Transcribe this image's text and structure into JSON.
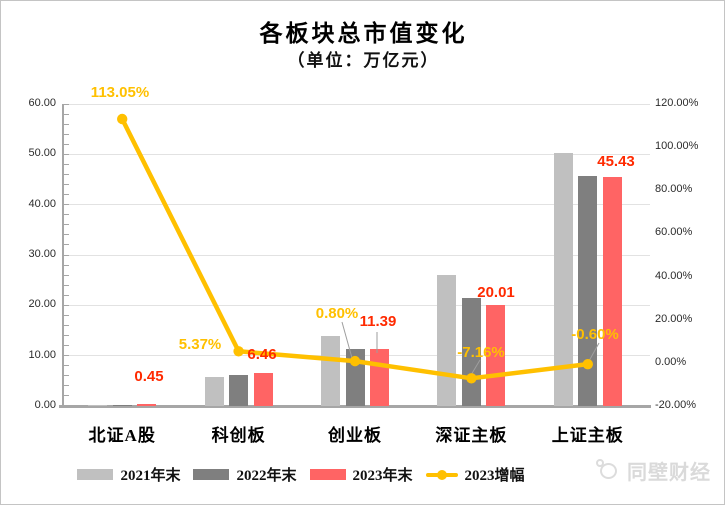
{
  "title": "各板块总市值变化",
  "subtitle": "（单位：万亿元）",
  "watermark": {
    "brand": "同壁财经",
    "icon": "panda-face-logo"
  },
  "legend": {
    "items": [
      {
        "label": "2021年末",
        "swatch": "bar",
        "color": "#c0c0c0"
      },
      {
        "label": "2022年末",
        "swatch": "bar",
        "color": "#7f7f7f"
      },
      {
        "label": "2023年末",
        "swatch": "bar",
        "color": "#ff6464"
      },
      {
        "label": "2023增幅",
        "swatch": "line-dot",
        "color": "#ffc000"
      }
    ]
  },
  "colors": {
    "bar_2021": "#c0c0c0",
    "bar_2022": "#7f7f7f",
    "bar_2023": "#ff6464",
    "growth_line": "#ffc000",
    "value_label": "#ff2a00",
    "growth_label": "#ffc000",
    "axis": "#a6a6a6",
    "gridline": "#e2e2e2",
    "leader_line": "#9e9e9e"
  },
  "chart_data": {
    "type": "bar",
    "combo": "clustered bars on left axis + line with markers on right percentage axis",
    "title": "各板块总市值变化",
    "subtitle": "（单位：万亿元）",
    "categories": [
      "北证A股",
      "科创板",
      "创业板",
      "深证主板",
      "上证主板"
    ],
    "series": [
      {
        "name": "2021年末",
        "type": "bar",
        "axis": "left",
        "values": [
          0.27,
          5.8,
          14.0,
          26.0,
          50.3
        ]
      },
      {
        "name": "2022年末",
        "type": "bar",
        "axis": "left",
        "values": [
          0.21,
          6.13,
          11.3,
          21.55,
          45.7
        ]
      },
      {
        "name": "2023年末",
        "type": "bar",
        "axis": "left",
        "values": [
          0.45,
          6.46,
          11.39,
          20.01,
          45.43
        ]
      },
      {
        "name": "2023增幅",
        "type": "line",
        "axis": "right",
        "values": [
          113.05,
          5.37,
          0.8,
          -7.16,
          -0.6
        ]
      }
    ],
    "data_labels": {
      "values_2023": [
        "0.45",
        "6.46",
        "11.39",
        "20.01",
        "45.43"
      ],
      "growth_2023": [
        "113.05%",
        "5.37%",
        "0.80%",
        "-7.16%",
        "-0.60%"
      ]
    },
    "left_axis": {
      "min": 0,
      "max": 60,
      "step": 10,
      "tick_labels": [
        "0.00",
        "10.00",
        "20.00",
        "30.00",
        "40.00",
        "50.00",
        "60.00"
      ]
    },
    "right_axis": {
      "min": -20,
      "max": 120,
      "step": 20,
      "tick_labels": [
        "-20.00%",
        "0.00%",
        "20.00%",
        "40.00%",
        "60.00%",
        "80.00%",
        "100.00%",
        "120.00%"
      ]
    },
    "grid": "horizontal major gridlines",
    "legend_position": "bottom"
  }
}
